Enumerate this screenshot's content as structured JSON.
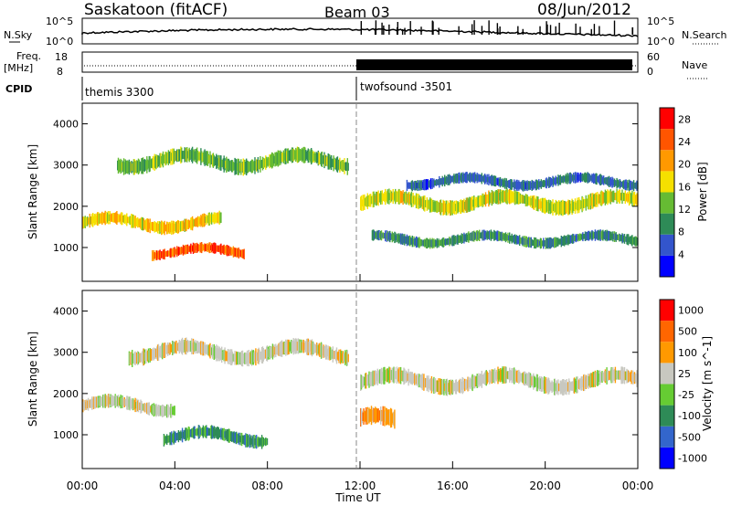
{
  "header": {
    "station": "Saskatoon (fitACF)",
    "beam": "Beam 03",
    "date": "08/Jun/2012"
  },
  "summary_panels": {
    "nsky_label": "N.Sky",
    "nsearch_label": "N.Search",
    "freq_label": "Freq.",
    "freq_unit": "[MHz]",
    "nave_label": "Nave",
    "cpid_label": "CPID",
    "nsky_ticks": [
      "10^5",
      "10^0"
    ],
    "nsearch_ticks": [
      "10^5",
      "10^0"
    ],
    "freq_ticks": [
      "18",
      "8"
    ],
    "nave_ticks": [
      "60",
      "0"
    ],
    "cpid_segments": [
      {
        "label": "themis 3300",
        "start_hour": 0,
        "end_hour": 12
      },
      {
        "label": "twofsound -3501",
        "start_hour": 12,
        "end_hour": 24
      }
    ]
  },
  "chart_data": [
    {
      "type": "heatmap",
      "name": "power",
      "ylabel": "Slant Range [km]",
      "xlim": [
        0,
        24
      ],
      "ylim": [
        180,
        4500
      ],
      "yticks": [
        1000,
        2000,
        3000,
        4000
      ],
      "colorbar": {
        "label": "Power [dB]",
        "ticks": [
          4,
          8,
          12,
          16,
          20,
          24,
          28
        ],
        "range": [
          0,
          30
        ],
        "colors": [
          "#0000ff",
          "#3355cc",
          "#2e8b57",
          "#66bb33",
          "#f5e000",
          "#ff9900",
          "#ff5500",
          "#ff0000"
        ]
      },
      "bands": [
        {
          "t0": 0.0,
          "t1": 6.0,
          "r": 1600,
          "w": 250,
          "level": 18
        },
        {
          "t0": 3.0,
          "t1": 7.0,
          "r": 900,
          "w": 200,
          "level": 26
        },
        {
          "t0": 1.5,
          "t1": 11.5,
          "r": 3100,
          "w": 300,
          "level": 12
        },
        {
          "t0": 12.0,
          "t1": 24.0,
          "r": 2100,
          "w": 280,
          "level": 16
        },
        {
          "t0": 12.5,
          "t1": 24.0,
          "r": 1200,
          "w": 200,
          "level": 8
        },
        {
          "t0": 14.0,
          "t1": 24.0,
          "r": 2600,
          "w": 200,
          "level": 6
        }
      ]
    },
    {
      "type": "heatmap",
      "name": "velocity",
      "xlabel": "Time UT",
      "ylabel": "Slant Range [km]",
      "xlim": [
        0,
        24
      ],
      "ylim": [
        180,
        4500
      ],
      "xticks": [
        "00:00",
        "04:00",
        "08:00",
        "12:00",
        "16:00",
        "20:00",
        "00:00"
      ],
      "yticks": [
        1000,
        2000,
        3000,
        4000
      ],
      "colorbar": {
        "label": "Velocity [m s^-1]",
        "ticks": [
          "1000",
          "500",
          "100",
          "25",
          "-25",
          "-100",
          "-500",
          "-1000"
        ],
        "colors": [
          "#0000ff",
          "#3366cc",
          "#2e8b57",
          "#66cc33",
          "#c8c8c0",
          "#ff9900",
          "#ff6600",
          "#ff0000"
        ]
      },
      "bands": [
        {
          "t0": 0.0,
          "t1": 4.0,
          "r": 1700,
          "w": 250,
          "level": 4
        },
        {
          "t0": 3.5,
          "t1": 8.0,
          "r": 950,
          "w": 250,
          "level": 2
        },
        {
          "t0": 2.0,
          "t1": 11.5,
          "r": 3000,
          "w": 300,
          "level": 4
        },
        {
          "t0": 12.0,
          "t1": 24.0,
          "r": 2300,
          "w": 300,
          "level": 4
        },
        {
          "t0": 12.0,
          "t1": 13.5,
          "r": 1300,
          "w": 350,
          "level": 5
        }
      ]
    }
  ]
}
